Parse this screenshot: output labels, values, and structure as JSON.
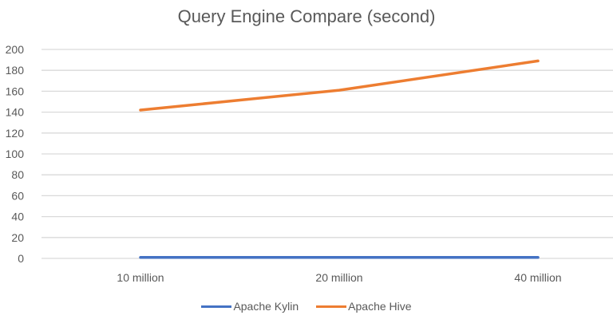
{
  "chart_data": {
    "type": "line",
    "title": "Query Engine Compare (second)",
    "xlabel": "",
    "ylabel": "",
    "categories": [
      "10 million",
      "20 million",
      "40 million"
    ],
    "ylim": [
      0,
      200
    ],
    "yticks": [
      0,
      20,
      40,
      60,
      80,
      100,
      120,
      140,
      160,
      180,
      200
    ],
    "grid": true,
    "legend_position": "bottom",
    "series": [
      {
        "name": "Apache Kylin",
        "color": "#4472C4",
        "values": [
          1,
          1,
          1
        ]
      },
      {
        "name": "Apache Hive",
        "color": "#ED7D31",
        "values": [
          142,
          161,
          189
        ]
      }
    ]
  }
}
